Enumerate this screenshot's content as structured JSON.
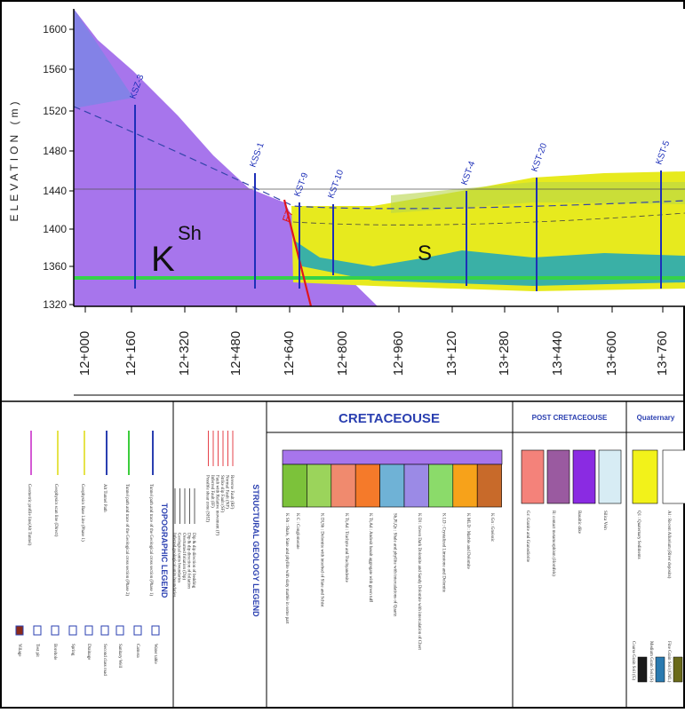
{
  "section": {
    "axis_label": "ELEVATION (m)",
    "elevations": [
      "1600",
      "1560",
      "1520",
      "1480",
      "1440",
      "1400",
      "1360",
      "1320"
    ],
    "chainages": [
      "12+000",
      "12+160",
      "12+320",
      "12+480",
      "12+640",
      "12+800",
      "12+960",
      "13+120",
      "13+280",
      "13+440",
      "13+600",
      "13+760"
    ],
    "boreholes": [
      "KSZ-3",
      "KSS-1",
      "KST-9",
      "KST-10",
      "KST-4",
      "KST-20",
      "KST-5"
    ],
    "fault": "F7",
    "unit_k": "K",
    "unit_sh": "Sh",
    "unit_s": "S"
  },
  "legend": {
    "topographic": {
      "title": "TOPOGRAPHIC LEGEND",
      "lines": [
        "Geometric profile line(Alt Tunnel)",
        "Geophysics scan line (Direct)",
        "Geophysics Base Line (Phase 1)",
        "Alt Tunnel Path",
        "Tunnel path and trace of the Geological cross section (Phase 2)",
        "Tunnel path and trace of the Geological cross section (Phase 1)"
      ],
      "symbols": [
        "Water table",
        "Camera",
        "Sanitary Well",
        "Second class road",
        "Drainage",
        "Spring",
        "Borehole",
        "Test pit",
        "Village"
      ]
    },
    "structural": {
      "title": "STRUCTURAL GEOLOGY LEGEND",
      "items": [
        "Reverse Fault (RF)",
        "Normal Fault (NF)",
        "Strike slip Fault (SF)",
        "Fault with Relative movement (F)",
        "Inferred Fault (IF)",
        "Possible shear zone (SHZ)",
        "Dip & dip direction of bedding",
        "Dip & dip direction of foliation",
        "Overturned foliation (Dip)",
        "Geological units boundaries",
        "Inferred geological units boundaries"
      ]
    },
    "cretaceous": {
      "title": "CRETACEOUSE",
      "units": [
        "K Sh : Shale, Slate and phyllite with slaty marble in some part",
        "K C : Conglomerate",
        "K Dl,Sh : Dolomite with interbed of Slate and Schist",
        "K Tr,Ad : Trachyte and Trachyandesite",
        "K Tr,Ad : Andesit basalt aggregate with green tuff",
        "Sh,Pl,Qz : Shale and phyllite with intercalations of Quartz",
        "K Dl : Green Dark Dolomite and Sandy Dolomite with intercalation of Chert",
        "K LD : Crystalized Limestone and Dolomite",
        "K MLD : Marble and Dolomite",
        "K Gn : Gneissic"
      ]
    },
    "post_cretaceous": {
      "title": "POST CRETACEOUSE",
      "units": [
        "Gr: Granite and Granodiorite",
        "R: contact metamorphism (Hornfels)",
        "Basaltic dike",
        "Silica Vein"
      ]
    },
    "quaternary": {
      "title": "Quaternary",
      "units": [
        "Q1 : Quaternary Sediments",
        "Al : Recent Alluvium (River deposits)"
      ],
      "soils": [
        "Coarse Grain Soil (G)",
        "Medium Grain Soil (S)",
        "Fine Grain Soil (CML)"
      ]
    }
  }
}
